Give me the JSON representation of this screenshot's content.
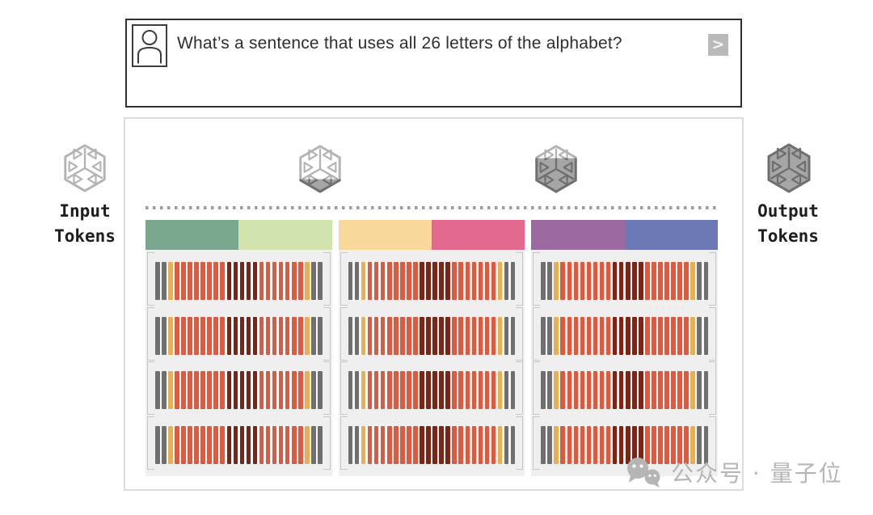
{
  "prompt": {
    "text": "What’s a sentence that uses all 26 letters of the alphabet?",
    "send_label": ">"
  },
  "left_label": {
    "line1": "Input",
    "line2": "Tokens"
  },
  "right_label": {
    "line1": "Output",
    "line2": "Tokens"
  },
  "hex_icons": {
    "outline_color": "#b3b3b3",
    "filled_stroke": "#6f6f6f",
    "filled_bg": "#a6a6a6",
    "states": [
      {
        "name": "input-tokens-icon",
        "slot": "hex-input",
        "fill_ratio": 0
      },
      {
        "name": "decode-progress-icon-1",
        "slot": "hex-mid-left",
        "fill_ratio": 0.28
      },
      {
        "name": "decode-progress-icon-2",
        "slot": "hex-mid-right",
        "fill_ratio": 0.7
      },
      {
        "name": "output-tokens-icon",
        "slot": "hex-output",
        "fill_ratio": 1
      }
    ]
  },
  "diagram": {
    "rows_per_column": 4,
    "columns": [
      {
        "name": "segment-1",
        "header_colors": [
          "#7aa78e",
          "#d2e4ae"
        ]
      },
      {
        "name": "segment-2",
        "header_colors": [
          "#f8d89b",
          "#e2698d"
        ]
      },
      {
        "name": "segment-3",
        "header_colors": [
          "#9b6aa0",
          "#6c79b4"
        ]
      }
    ],
    "bar_pattern": [
      "gray",
      "gray",
      "yellow",
      "red",
      "red",
      "red",
      "red",
      "red",
      "red",
      "red",
      "red",
      "darkred",
      "darkred",
      "darkred",
      "darkred",
      "darkred",
      "red",
      "red",
      "red",
      "red",
      "red",
      "red",
      "red",
      "yellow",
      "gray",
      "gray"
    ],
    "bar_colors": {
      "gray": "#6f6f6f",
      "yellow": "#e9b052",
      "red": "#dd5a41",
      "darkred": "#7c2517"
    },
    "panel_bg": "#efefef"
  },
  "watermark": {
    "text": "公众号 · 量子位"
  }
}
